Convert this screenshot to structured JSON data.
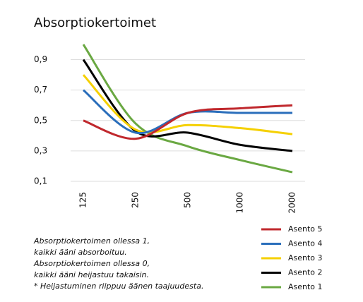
{
  "chart_data": {
    "type": "line",
    "title": "Absorptiokertoimet",
    "categories": [
      "125",
      "250",
      "500",
      "1000",
      "2000"
    ],
    "series": [
      {
        "name": "Asento 5",
        "color": "#c0282d",
        "values": [
          0.5,
          0.38,
          0.55,
          0.58,
          0.6
        ]
      },
      {
        "name": "Asento 4",
        "color": "#2a6ebb",
        "values": [
          0.7,
          0.42,
          0.55,
          0.55,
          0.55
        ]
      },
      {
        "name": "Asento 3",
        "color": "#f5d000",
        "values": [
          0.8,
          0.44,
          0.47,
          0.45,
          0.41
        ]
      },
      {
        "name": "Asento 2",
        "color": "#000000",
        "values": [
          0.9,
          0.43,
          0.42,
          0.34,
          0.3
        ]
      },
      {
        "name": "Asento 1",
        "color": "#6aa842",
        "values": [
          1.0,
          0.48,
          0.33,
          0.24,
          0.16
        ]
      }
    ],
    "ylim": [
      0.1,
      1.0
    ],
    "yticks": [
      {
        "value": 0.9,
        "label": "0,9"
      },
      {
        "value": 0.7,
        "label": "0,7"
      },
      {
        "value": 0.5,
        "label": "0,5"
      },
      {
        "value": 0.3,
        "label": "0,3"
      },
      {
        "value": 0.1,
        "label": "0,1"
      }
    ],
    "grid": true,
    "annotation": [
      "Absorptiokertoimen ollessa 1,",
      "kaikki ääni absorboituu.",
      "Absorptiokertoimen ollessa 0,",
      "kaikki ääni heijastuu takaisin.",
      "* Heijastuminen riippuu äänen taajuudesta."
    ]
  }
}
